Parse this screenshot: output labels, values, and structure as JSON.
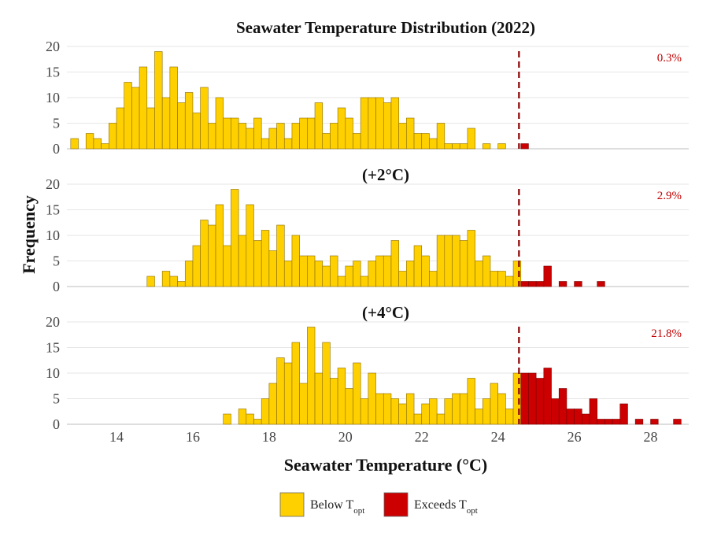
{
  "chart_data": {
    "type": "bar",
    "xlabel": "Seawater Temperature (°C)",
    "ylabel": "Frequency",
    "x_ticks": [
      14,
      16,
      18,
      20,
      22,
      24,
      26,
      28
    ],
    "xlim": [
      12.7,
      29.0
    ],
    "ylim": [
      0,
      20
    ],
    "y_ticks": [
      0,
      5,
      10,
      15,
      20
    ],
    "bin_width": 0.2,
    "threshold": 24.55,
    "grid": true,
    "colors": {
      "below": "#ffd000",
      "exceeds": "#cc0000",
      "bar_edge": "#8a6d00",
      "threshold": "#8b0000"
    },
    "legend": {
      "position": "bottom-center",
      "items": [
        {
          "key": "below",
          "text": "Below T",
          "sub": "opt"
        },
        {
          "key": "exceeds",
          "text": "Exceeds T",
          "sub": "opt"
        }
      ]
    },
    "panels": [
      {
        "title": "Seawater Temperature Distribution (2022)",
        "exceed_pct": "0.3%",
        "bins": [
          [
            12.8,
            2
          ],
          [
            13.2,
            3
          ],
          [
            13.4,
            2
          ],
          [
            13.6,
            1
          ],
          [
            13.8,
            5
          ],
          [
            14.0,
            8
          ],
          [
            14.2,
            13
          ],
          [
            14.4,
            12
          ],
          [
            14.6,
            16
          ],
          [
            14.8,
            8
          ],
          [
            15.0,
            19
          ],
          [
            15.2,
            10
          ],
          [
            15.4,
            16
          ],
          [
            15.6,
            9
          ],
          [
            15.8,
            11
          ],
          [
            16.0,
            7
          ],
          [
            16.2,
            12
          ],
          [
            16.4,
            5
          ],
          [
            16.6,
            10
          ],
          [
            16.8,
            6
          ],
          [
            17.0,
            6
          ],
          [
            17.2,
            5
          ],
          [
            17.4,
            4
          ],
          [
            17.6,
            6
          ],
          [
            17.8,
            2
          ],
          [
            18.0,
            4
          ],
          [
            18.2,
            5
          ],
          [
            18.4,
            2
          ],
          [
            18.6,
            5
          ],
          [
            18.8,
            6
          ],
          [
            19.0,
            6
          ],
          [
            19.2,
            9
          ],
          [
            19.4,
            3
          ],
          [
            19.6,
            5
          ],
          [
            19.8,
            8
          ],
          [
            20.0,
            6
          ],
          [
            20.2,
            3
          ],
          [
            20.4,
            10
          ],
          [
            20.6,
            10
          ],
          [
            20.8,
            10
          ],
          [
            21.0,
            9
          ],
          [
            21.2,
            10
          ],
          [
            21.4,
            5
          ],
          [
            21.6,
            6
          ],
          [
            21.8,
            3
          ],
          [
            22.0,
            3
          ],
          [
            22.2,
            2
          ],
          [
            22.4,
            5
          ],
          [
            22.6,
            1
          ],
          [
            22.8,
            1
          ],
          [
            23.0,
            1
          ],
          [
            23.2,
            4
          ],
          [
            23.6,
            1
          ],
          [
            24.0,
            1
          ],
          [
            24.6,
            1
          ]
        ]
      },
      {
        "title": "(+2°C)",
        "exceed_pct": "2.9%",
        "bins": [
          [
            14.8,
            2
          ],
          [
            15.2,
            3
          ],
          [
            15.4,
            2
          ],
          [
            15.6,
            1
          ],
          [
            15.8,
            5
          ],
          [
            16.0,
            8
          ],
          [
            16.2,
            13
          ],
          [
            16.4,
            12
          ],
          [
            16.6,
            16
          ],
          [
            16.8,
            8
          ],
          [
            17.0,
            19
          ],
          [
            17.2,
            10
          ],
          [
            17.4,
            16
          ],
          [
            17.6,
            9
          ],
          [
            17.8,
            11
          ],
          [
            18.0,
            7
          ],
          [
            18.2,
            12
          ],
          [
            18.4,
            5
          ],
          [
            18.6,
            10
          ],
          [
            18.8,
            6
          ],
          [
            19.0,
            6
          ],
          [
            19.2,
            5
          ],
          [
            19.4,
            4
          ],
          [
            19.6,
            6
          ],
          [
            19.8,
            2
          ],
          [
            20.0,
            4
          ],
          [
            20.2,
            5
          ],
          [
            20.4,
            2
          ],
          [
            20.6,
            5
          ],
          [
            20.8,
            6
          ],
          [
            21.0,
            6
          ],
          [
            21.2,
            9
          ],
          [
            21.4,
            3
          ],
          [
            21.6,
            5
          ],
          [
            21.8,
            8
          ],
          [
            22.0,
            6
          ],
          [
            22.2,
            3
          ],
          [
            22.4,
            10
          ],
          [
            22.6,
            10
          ],
          [
            22.8,
            10
          ],
          [
            23.0,
            9
          ],
          [
            23.2,
            11
          ],
          [
            23.4,
            5
          ],
          [
            23.6,
            6
          ],
          [
            23.8,
            3
          ],
          [
            24.0,
            3
          ],
          [
            24.2,
            2
          ],
          [
            24.4,
            5
          ],
          [
            24.6,
            1
          ],
          [
            24.8,
            1
          ],
          [
            25.0,
            1
          ],
          [
            25.2,
            4
          ],
          [
            25.6,
            1
          ],
          [
            26.0,
            1
          ],
          [
            26.6,
            1
          ]
        ]
      },
      {
        "title": "(+4°C)",
        "exceed_pct": "21.8%",
        "bins": [
          [
            16.8,
            2
          ],
          [
            17.2,
            3
          ],
          [
            17.4,
            2
          ],
          [
            17.6,
            1
          ],
          [
            17.8,
            5
          ],
          [
            18.0,
            8
          ],
          [
            18.2,
            13
          ],
          [
            18.4,
            12
          ],
          [
            18.6,
            16
          ],
          [
            18.8,
            8
          ],
          [
            19.0,
            19
          ],
          [
            19.2,
            10
          ],
          [
            19.4,
            16
          ],
          [
            19.6,
            9
          ],
          [
            19.8,
            11
          ],
          [
            20.0,
            7
          ],
          [
            20.2,
            12
          ],
          [
            20.4,
            5
          ],
          [
            20.6,
            10
          ],
          [
            20.8,
            6
          ],
          [
            21.0,
            6
          ],
          [
            21.2,
            5
          ],
          [
            21.4,
            4
          ],
          [
            21.6,
            6
          ],
          [
            21.8,
            2
          ],
          [
            22.0,
            4
          ],
          [
            22.2,
            5
          ],
          [
            22.4,
            2
          ],
          [
            22.6,
            5
          ],
          [
            22.8,
            6
          ],
          [
            23.0,
            6
          ],
          [
            23.2,
            9
          ],
          [
            23.4,
            3
          ],
          [
            23.6,
            5
          ],
          [
            23.8,
            8
          ],
          [
            24.0,
            6
          ],
          [
            24.2,
            3
          ],
          [
            24.4,
            10
          ],
          [
            24.6,
            10
          ],
          [
            24.8,
            10
          ],
          [
            25.0,
            9
          ],
          [
            25.2,
            11
          ],
          [
            25.4,
            5
          ],
          [
            25.6,
            7
          ],
          [
            25.8,
            3
          ],
          [
            26.0,
            3
          ],
          [
            26.2,
            2
          ],
          [
            26.4,
            5
          ],
          [
            26.6,
            1
          ],
          [
            26.8,
            1
          ],
          [
            27.0,
            1
          ],
          [
            27.2,
            4
          ],
          [
            27.6,
            1
          ],
          [
            28.0,
            1
          ],
          [
            28.6,
            1
          ]
        ]
      }
    ]
  }
}
